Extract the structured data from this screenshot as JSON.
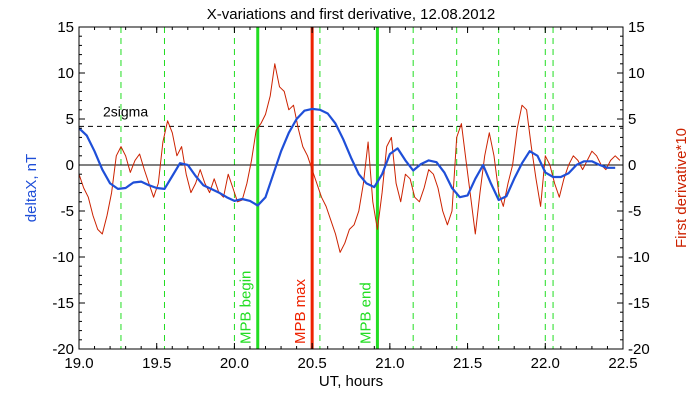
{
  "chart_data": {
    "type": "line",
    "title": "X-variations and first derivative, 12.08.2012",
    "xlabel": "UT, hours",
    "ylabel_left": "deltaX, nT",
    "ylabel_right": "First derivative*10",
    "xlim": [
      19.0,
      22.5
    ],
    "ylim": [
      -20,
      15
    ],
    "xticks": [
      "19.0",
      "19.5",
      "20.0",
      "20.5",
      "21.0",
      "21.5",
      "22.0",
      "22.5"
    ],
    "yticks": [
      "15",
      "10",
      "5",
      "0",
      "-5",
      "-10",
      "-15",
      "-20"
    ],
    "colors": {
      "deltaX": "#1f4fd8",
      "derivative": "#cc2200",
      "marker_green": "#22dd22",
      "marker_red": "#ee2200"
    },
    "threshold": {
      "label": "2sigma",
      "y": 4.2
    },
    "zero_line": 0,
    "dashed_verticals": [
      19.27,
      19.55,
      20.0,
      20.55,
      21.15,
      21.43,
      21.7,
      22.0,
      22.05
    ],
    "markers": [
      {
        "label": "MPB begin",
        "x": 20.15,
        "color": "#22dd22"
      },
      {
        "label": "MPB max",
        "x": 20.5,
        "color": "#ee2200"
      },
      {
        "label": "MPB end",
        "x": 20.92,
        "color": "#22dd22"
      }
    ],
    "series": [
      {
        "name": "deltaX",
        "axis": "left",
        "x": [
          19.0,
          19.05,
          19.1,
          19.15,
          19.2,
          19.25,
          19.3,
          19.35,
          19.4,
          19.45,
          19.5,
          19.55,
          19.6,
          19.65,
          19.7,
          19.75,
          19.8,
          19.85,
          19.9,
          19.95,
          20.0,
          20.05,
          20.1,
          20.15,
          20.2,
          20.25,
          20.3,
          20.35,
          20.4,
          20.45,
          20.5,
          20.55,
          20.6,
          20.65,
          20.7,
          20.75,
          20.8,
          20.85,
          20.9,
          20.95,
          21.0,
          21.05,
          21.1,
          21.15,
          21.2,
          21.25,
          21.3,
          21.35,
          21.4,
          21.45,
          21.5,
          21.55,
          21.6,
          21.65,
          21.7,
          21.75,
          21.8,
          21.85,
          21.9,
          21.95,
          22.0,
          22.05,
          22.1,
          22.15,
          22.2,
          22.25,
          22.3,
          22.35,
          22.4,
          22.45
        ],
        "y": [
          4.0,
          3.2,
          1.5,
          -0.5,
          -2.0,
          -2.6,
          -2.5,
          -1.9,
          -1.8,
          -2.2,
          -2.5,
          -2.6,
          -1.2,
          0.2,
          0.0,
          -1.2,
          -2.2,
          -2.6,
          -3.0,
          -3.5,
          -3.9,
          -3.7,
          -3.9,
          -4.4,
          -3.5,
          -1.0,
          1.5,
          3.5,
          5.0,
          5.9,
          6.1,
          6.0,
          5.6,
          4.5,
          2.8,
          0.8,
          -1.0,
          -2.0,
          -2.4,
          -1.0,
          1.2,
          1.8,
          0.5,
          -0.6,
          0.1,
          0.5,
          0.3,
          -0.8,
          -2.5,
          -3.5,
          -3.3,
          -1.5,
          0.0,
          -2.0,
          -3.8,
          -3.4,
          -1.5,
          0.2,
          1.5,
          1.0,
          -0.8,
          -1.3,
          -1.3,
          -0.9,
          0.0,
          0.4,
          0.4,
          0.0,
          -0.3,
          -0.3
        ]
      },
      {
        "name": "First derivative*10",
        "axis": "right",
        "x": [
          19.0,
          19.03,
          19.06,
          19.09,
          19.12,
          19.15,
          19.18,
          19.21,
          19.24,
          19.27,
          19.3,
          19.33,
          19.36,
          19.39,
          19.42,
          19.45,
          19.48,
          19.51,
          19.54,
          19.57,
          19.6,
          19.63,
          19.66,
          19.69,
          19.72,
          19.75,
          19.78,
          19.81,
          19.84,
          19.87,
          19.9,
          19.93,
          19.96,
          19.99,
          20.02,
          20.05,
          20.08,
          20.11,
          20.14,
          20.17,
          20.2,
          20.23,
          20.26,
          20.29,
          20.32,
          20.35,
          20.38,
          20.41,
          20.44,
          20.47,
          20.5,
          20.53,
          20.56,
          20.59,
          20.62,
          20.65,
          20.68,
          20.71,
          20.74,
          20.77,
          20.8,
          20.83,
          20.86,
          20.89,
          20.92,
          20.95,
          20.98,
          21.01,
          21.04,
          21.07,
          21.1,
          21.13,
          21.16,
          21.19,
          21.22,
          21.25,
          21.28,
          21.31,
          21.34,
          21.37,
          21.4,
          21.43,
          21.46,
          21.49,
          21.52,
          21.55,
          21.58,
          21.61,
          21.64,
          21.67,
          21.7,
          21.73,
          21.76,
          21.79,
          21.82,
          21.85,
          21.88,
          21.91,
          21.94,
          21.97,
          22.0,
          22.03,
          22.06,
          22.09,
          22.12,
          22.15,
          22.18,
          22.21,
          22.24,
          22.27,
          22.3,
          22.33,
          22.36,
          22.39,
          22.42,
          22.45,
          22.48
        ],
        "y": [
          -1.0,
          -2.5,
          -3.5,
          -5.5,
          -7.0,
          -7.5,
          -5.5,
          -3.0,
          1.0,
          2.0,
          1.0,
          -0.8,
          0.5,
          1.2,
          -0.5,
          -2.0,
          -3.5,
          -2.0,
          2.5,
          4.8,
          3.5,
          1.0,
          2.0,
          -1.0,
          -3.0,
          -2.0,
          -0.5,
          -2.0,
          -3.0,
          -1.5,
          -3.0,
          -3.5,
          -1.0,
          -2.5,
          -4.0,
          -3.8,
          -2.0,
          0.5,
          3.8,
          4.5,
          5.5,
          7.5,
          11.0,
          8.5,
          8.0,
          6.0,
          6.5,
          4.0,
          2.0,
          1.0,
          -0.5,
          -2.0,
          -3.5,
          -4.5,
          -6.0,
          -7.5,
          -9.5,
          -8.5,
          -7.0,
          -6.5,
          -5.0,
          -2.0,
          2.5,
          -4.0,
          -7.0,
          -3.0,
          2.0,
          3.0,
          -2.0,
          -4.0,
          -1.0,
          -1.5,
          -3.5,
          -4.0,
          -2.5,
          -0.5,
          -1.0,
          -2.5,
          -5.0,
          -6.5,
          -5.0,
          3.0,
          4.5,
          0.5,
          -3.5,
          -7.5,
          -3.0,
          1.0,
          3.5,
          1.0,
          -3.0,
          -4.5,
          -2.0,
          0.0,
          4.0,
          6.5,
          6.0,
          2.0,
          -1.5,
          -4.5,
          1.0,
          0.0,
          -2.0,
          -3.5,
          -1.5,
          0.0,
          1.0,
          0.5,
          -0.5,
          0.5,
          1.5,
          1.0,
          0.0,
          -0.5,
          0.5,
          1.0,
          0.5
        ]
      }
    ]
  }
}
